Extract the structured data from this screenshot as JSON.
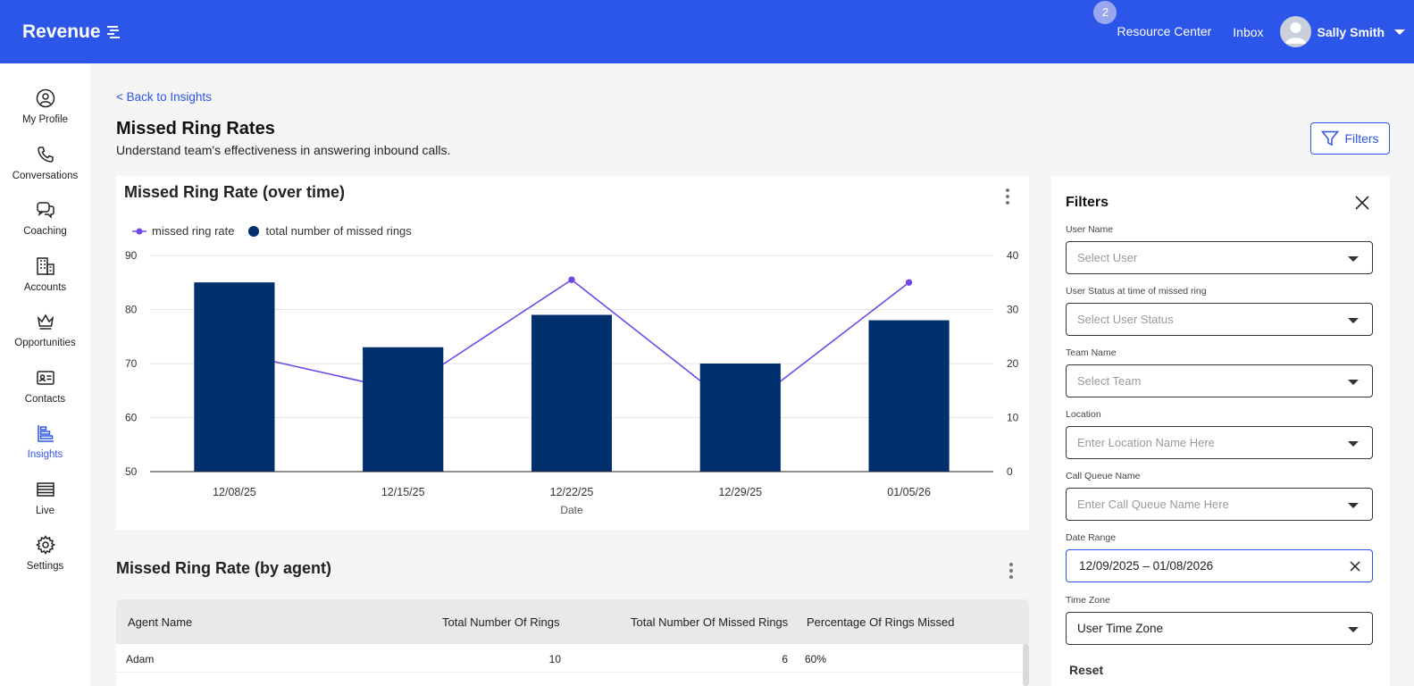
{
  "header": {
    "brand": "Revenue",
    "badge_count": "2",
    "resource_center": "Resource Center",
    "inbox": "Inbox",
    "user_name": "Sally Smith"
  },
  "sidebar": {
    "items": [
      {
        "label": "My Profile",
        "icon": "user-circle-icon"
      },
      {
        "label": "Conversations",
        "icon": "phone-icon"
      },
      {
        "label": "Coaching",
        "icon": "chat-bubbles-icon"
      },
      {
        "label": "Accounts",
        "icon": "building-icon"
      },
      {
        "label": "Opportunities",
        "icon": "crown-icon"
      },
      {
        "label": "Contacts",
        "icon": "contact-card-icon"
      },
      {
        "label": "Insights",
        "icon": "bar-chart-icon",
        "active": true
      },
      {
        "label": "Live",
        "icon": "list-icon"
      },
      {
        "label": "Settings",
        "icon": "gear-icon"
      }
    ]
  },
  "page": {
    "back_link": "< Back to Insights",
    "title": "Missed Ring Rates",
    "subtitle": "Understand team's effectiveness in answering inbound calls.",
    "filters_button": "Filters"
  },
  "chart_data": {
    "type": "bar",
    "title": "Missed Ring Rate (over time)",
    "xlabel": "Date",
    "categories": [
      "12/08/25",
      "12/15/25",
      "12/22/25",
      "12/29/25",
      "01/05/26"
    ],
    "series": [
      {
        "name": "missed ring rate",
        "type": "line",
        "axis": "left",
        "values": [
          72,
          65,
          85.5,
          61,
          85
        ],
        "color": "#7048e8"
      },
      {
        "name": "total number of missed rings",
        "type": "bar",
        "axis": "right",
        "values": [
          35,
          23,
          29,
          20,
          28
        ],
        "color": "#00306e"
      }
    ],
    "y_left": {
      "ticks": [
        "90",
        "80",
        "70",
        "60",
        "50"
      ],
      "lim": [
        50,
        90
      ]
    },
    "y_right": {
      "ticks": [
        "40",
        "30",
        "20",
        "10",
        "0"
      ],
      "lim": [
        0,
        40
      ]
    },
    "grid": true,
    "legend_position": "top-left"
  },
  "agent_table": {
    "title": "Missed Ring Rate (by agent)",
    "columns": [
      "Agent Name",
      "Total Number Of Rings",
      "Total Number Of Missed Rings",
      "Percentage Of Rings Missed"
    ],
    "rows": [
      [
        "Adam",
        "10",
        "6",
        "60%"
      ]
    ]
  },
  "filters_panel": {
    "title": "Filters",
    "user_name_label": "User Name",
    "user_name_placeholder": "Select User",
    "user_status_label": "User Status at time of missed ring",
    "user_status_placeholder": "Select User Status",
    "team_label": "Team Name",
    "team_placeholder": "Select Team",
    "location_label": "Location",
    "location_placeholder": "Enter Location Name Here",
    "queue_label": "Call Queue Name",
    "queue_placeholder": "Enter Call Queue Name Here",
    "date_range_label": "Date Range",
    "date_range_value": "12/09/2025 – 01/08/2026",
    "time_zone_label": "Time Zone",
    "time_zone_value": "User Time Zone",
    "reset": "Reset"
  }
}
